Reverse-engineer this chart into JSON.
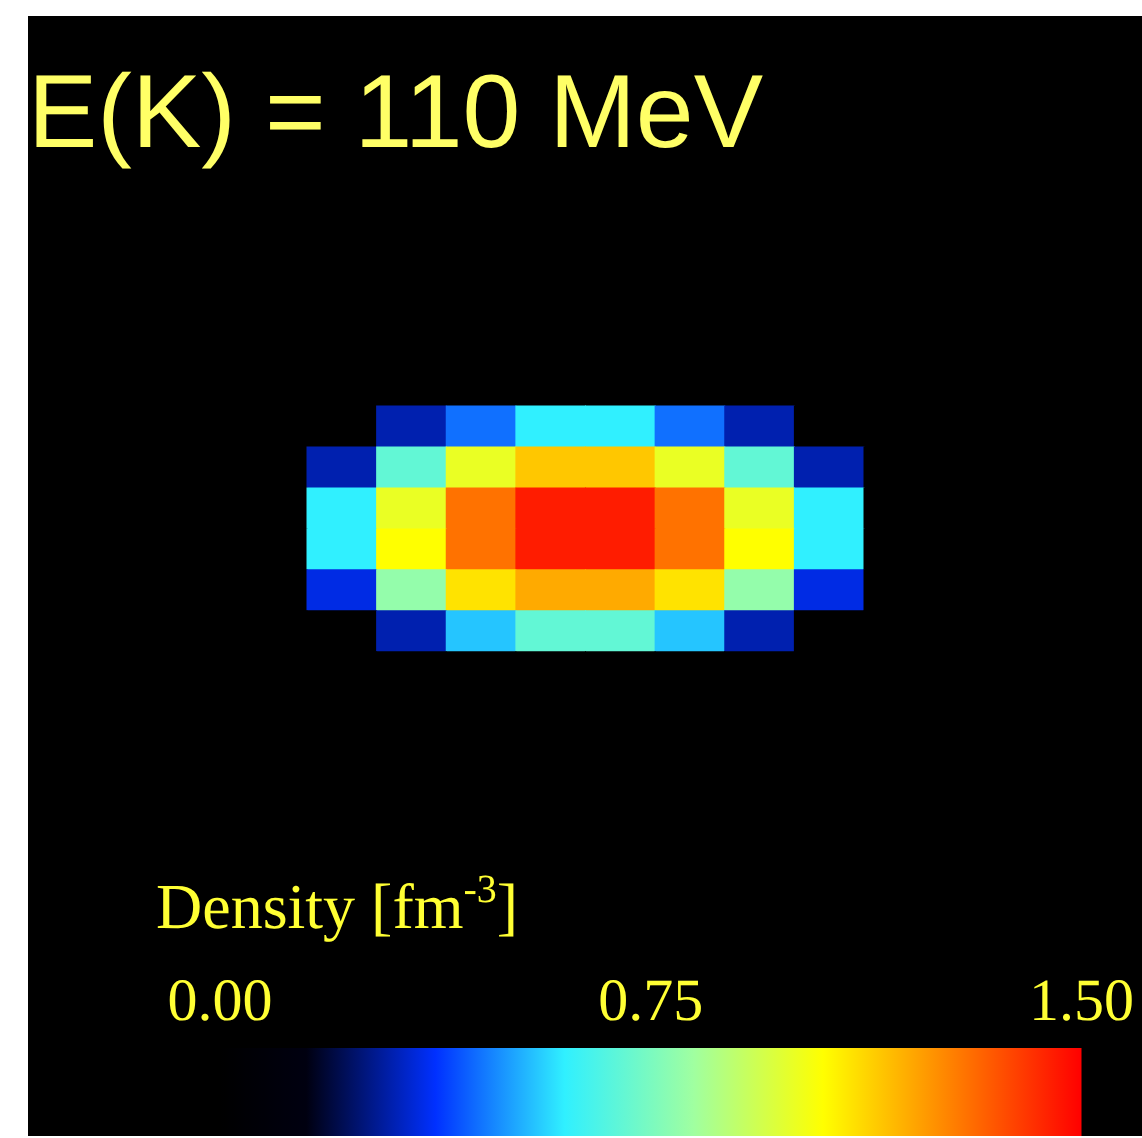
{
  "chart_data": {
    "type": "heatmap",
    "title": "E(K) = 110 MeV",
    "clabel": "Density [fm$^{-3}$]",
    "categories": [
      null,
      null,
      null,
      null,
      null,
      null,
      null,
      null,
      null,
      null,
      null,
      null,
      null,
      null,
      null,
      null
    ],
    "y_categories": [
      null,
      null,
      null,
      null,
      null,
      null,
      null,
      null,
      null,
      null,
      null,
      null,
      null,
      null,
      null,
      null
    ],
    "cells": [
      [
        0,
        0,
        0,
        0,
        0,
        0,
        0,
        0,
        0,
        0,
        0,
        0,
        0,
        0,
        0,
        0
      ],
      [
        0,
        0,
        0,
        0,
        0,
        0,
        0,
        0,
        0,
        0,
        0,
        0,
        0,
        0,
        0,
        0
      ],
      [
        0,
        0,
        0,
        0,
        0,
        0,
        0,
        0,
        0,
        0,
        0,
        0,
        0,
        0,
        0,
        0
      ],
      [
        0,
        0,
        0,
        0,
        0,
        0,
        0,
        0,
        0,
        0,
        0,
        0,
        0,
        0,
        0,
        0
      ],
      [
        0,
        0,
        0,
        0,
        0,
        0,
        0,
        0,
        0,
        0,
        0,
        0,
        0,
        0,
        0,
        0
      ],
      [
        0,
        0,
        0,
        0,
        0,
        0.3,
        0.45,
        0.6,
        0.6,
        0.45,
        0.3,
        0,
        0,
        0,
        0,
        0
      ],
      [
        0,
        0,
        0,
        0,
        0.3,
        0.7,
        1.0,
        1.15,
        1.15,
        1.0,
        0.7,
        0.3,
        0,
        0,
        0,
        0
      ],
      [
        0,
        0,
        0,
        0,
        0.6,
        1.0,
        1.3,
        1.45,
        1.45,
        1.3,
        1.0,
        0.6,
        0,
        0,
        0,
        0
      ],
      [
        0,
        0,
        0,
        0,
        0.6,
        1.05,
        1.3,
        1.45,
        1.45,
        1.3,
        1.05,
        0.6,
        0,
        0,
        0,
        0
      ],
      [
        0,
        0,
        0,
        0,
        0.35,
        0.8,
        1.1,
        1.2,
        1.2,
        1.1,
        0.8,
        0.35,
        0,
        0,
        0,
        0
      ],
      [
        0,
        0,
        0,
        0,
        0,
        0.3,
        0.55,
        0.7,
        0.7,
        0.55,
        0.3,
        0,
        0,
        0,
        0,
        0
      ],
      [
        0,
        0,
        0,
        0,
        0,
        0,
        0,
        0,
        0,
        0,
        0,
        0,
        0,
        0,
        0,
        0
      ],
      [
        0,
        0,
        0,
        0,
        0,
        0,
        0,
        0,
        0,
        0,
        0,
        0,
        0,
        0,
        0,
        0
      ],
      [
        0,
        0,
        0,
        0,
        0,
        0,
        0,
        0,
        0,
        0,
        0,
        0,
        0,
        0,
        0,
        0
      ],
      [
        0,
        0,
        0,
        0,
        0,
        0,
        0,
        0,
        0,
        0,
        0,
        0,
        0,
        0,
        0,
        0
      ],
      [
        0,
        0,
        0,
        0,
        0,
        0,
        0,
        0,
        0,
        0,
        0,
        0,
        0,
        0,
        0,
        0
      ]
    ],
    "clim": [
      0,
      1.5
    ],
    "cticks": [
      {
        "value": 0,
        "label": "0.00"
      },
      {
        "value": 0.75,
        "label": "0.75"
      },
      {
        "value": 1.5,
        "label": "1.50"
      }
    ],
    "tick_labels": false
  }
}
